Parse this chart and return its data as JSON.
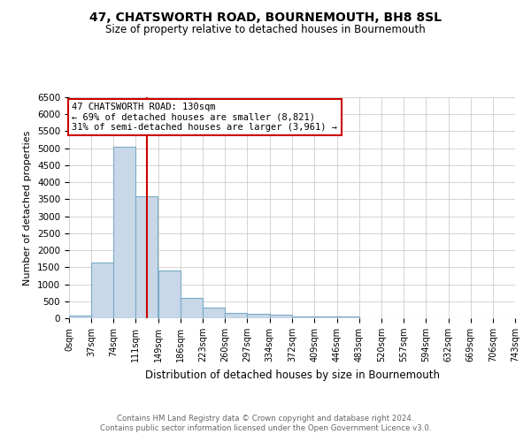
{
  "title": "47, CHATSWORTH ROAD, BOURNEMOUTH, BH8 8SL",
  "subtitle": "Size of property relative to detached houses in Bournemouth",
  "xlabel": "Distribution of detached houses by size in Bournemouth",
  "ylabel": "Number of detached properties",
  "bin_edges": [
    0,
    37,
    74,
    111,
    149,
    186,
    223,
    260,
    297,
    334,
    372,
    409,
    446,
    483,
    520,
    557,
    594,
    632,
    669,
    706,
    743
  ],
  "bar_heights": [
    75,
    1650,
    5050,
    3580,
    1400,
    610,
    300,
    155,
    140,
    100,
    55,
    40,
    55,
    0,
    0,
    0,
    0,
    0,
    0,
    0
  ],
  "bar_color": "#c8d8e8",
  "bar_edge_color": "#7aaac8",
  "property_size": 130,
  "red_line_color": "#cc0000",
  "annotation_line1": "47 CHATSWORTH ROAD: 130sqm",
  "annotation_line2": "← 69% of detached houses are smaller (8,821)",
  "annotation_line3": "31% of semi-detached houses are larger (3,961) →",
  "annotation_box_color": "#cc0000",
  "ylim": [
    0,
    6500
  ],
  "yticks": [
    0,
    500,
    1000,
    1500,
    2000,
    2500,
    3000,
    3500,
    4000,
    4500,
    5000,
    5500,
    6000,
    6500
  ],
  "footer_line1": "Contains HM Land Registry data © Crown copyright and database right 2024.",
  "footer_line2": "Contains public sector information licensed under the Open Government Licence v3.0.",
  "background_color": "#ffffff",
  "grid_color": "#cccccc"
}
